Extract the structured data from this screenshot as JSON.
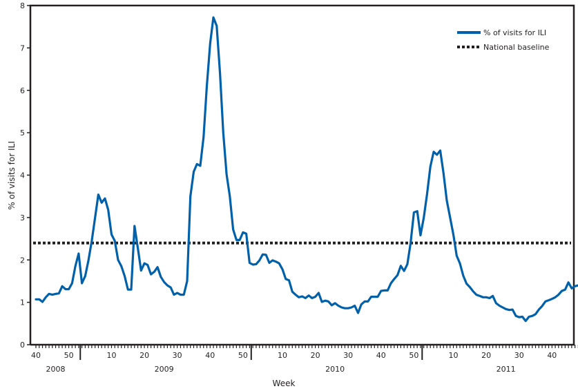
{
  "chart_data": {
    "type": "line",
    "title": "",
    "xlabel": "Week",
    "ylabel": "% of visits for ILI",
    "ylim": [
      0,
      8
    ],
    "y_ticks": [
      0,
      1,
      2,
      3,
      4,
      5,
      6,
      7,
      8
    ],
    "grid": false,
    "legend_position": "top-right",
    "legend": [
      {
        "label": "% of visits for ILI",
        "style": "solid",
        "color": "#0060a9"
      },
      {
        "label": "National baseline",
        "style": "dotted",
        "color": "#231f20"
      }
    ],
    "x_tick_labels": [
      {
        "week_index": 0,
        "label": "40"
      },
      {
        "week_index": 10,
        "label": "50"
      },
      {
        "week_index": 23,
        "label": "10"
      },
      {
        "week_index": 33,
        "label": "20"
      },
      {
        "week_index": 43,
        "label": "30"
      },
      {
        "week_index": 53,
        "label": "40"
      },
      {
        "week_index": 63,
        "label": "50"
      },
      {
        "week_index": 75,
        "label": "10"
      },
      {
        "week_index": 85,
        "label": "20"
      },
      {
        "week_index": 95,
        "label": "30"
      },
      {
        "week_index": 105,
        "label": "40"
      },
      {
        "week_index": 115,
        "label": "50"
      },
      {
        "week_index": 127,
        "label": "10"
      },
      {
        "week_index": 137,
        "label": "20"
      },
      {
        "week_index": 147,
        "label": "30"
      },
      {
        "week_index": 157,
        "label": "40"
      }
    ],
    "year_dividers": [
      13.5,
      65.5,
      117.5
    ],
    "year_labels": [
      {
        "week_index": 6,
        "label": "2008"
      },
      {
        "week_index": 39,
        "label": "2009"
      },
      {
        "week_index": 91,
        "label": "2010"
      },
      {
        "week_index": 143,
        "label": "2011"
      }
    ],
    "series": [
      {
        "name": "% of visits for ILI",
        "start": "2008 week 40",
        "values": [
          1.07,
          1.07,
          1.01,
          1.12,
          1.2,
          1.18,
          1.2,
          1.21,
          1.38,
          1.31,
          1.31,
          1.45,
          1.85,
          2.15,
          1.45,
          1.62,
          2.0,
          2.45,
          3.0,
          3.54,
          3.35,
          3.45,
          3.18,
          2.6,
          2.45,
          2.0,
          1.85,
          1.62,
          1.3,
          1.3,
          2.8,
          2.28,
          1.75,
          1.92,
          1.88,
          1.66,
          1.72,
          1.83,
          1.6,
          1.48,
          1.4,
          1.35,
          1.18,
          1.22,
          1.18,
          1.18,
          1.5,
          3.5,
          4.08,
          4.26,
          4.22,
          4.9,
          6.1,
          7.1,
          7.72,
          7.52,
          6.4,
          5.0,
          4.02,
          3.5,
          2.72,
          2.47,
          2.47,
          2.65,
          2.62,
          1.93,
          1.89,
          1.9,
          1.99,
          2.13,
          2.12,
          1.93,
          1.99,
          1.96,
          1.92,
          1.78,
          1.55,
          1.52,
          1.25,
          1.18,
          1.12,
          1.14,
          1.1,
          1.16,
          1.1,
          1.13,
          1.22,
          1.01,
          1.04,
          1.02,
          0.93,
          0.98,
          0.92,
          0.88,
          0.86,
          0.86,
          0.88,
          0.92,
          0.75,
          0.95,
          1.02,
          1.02,
          1.13,
          1.13,
          1.13,
          1.27,
          1.28,
          1.28,
          1.45,
          1.55,
          1.64,
          1.86,
          1.74,
          1.9,
          2.4,
          3.12,
          3.15,
          2.58,
          3.0,
          3.55,
          4.2,
          4.55,
          4.48,
          4.58,
          4.05,
          3.4,
          3.0,
          2.6,
          2.1,
          1.92,
          1.63,
          1.44,
          1.36,
          1.26,
          1.18,
          1.15,
          1.12,
          1.12,
          1.1,
          1.15,
          0.98,
          0.92,
          0.88,
          0.84,
          0.82,
          0.83,
          0.68,
          0.65,
          0.66,
          0.56,
          0.66,
          0.68,
          0.72,
          0.83,
          0.91,
          1.02,
          1.05,
          1.08,
          1.12,
          1.18,
          1.27,
          1.3,
          1.47,
          1.33,
          1.38,
          1.4
        ]
      },
      {
        "name": "National baseline",
        "value": 2.4
      }
    ]
  },
  "axes": {
    "y_label": "% of visits for ILI",
    "x_label": "Week"
  },
  "legend": {
    "ili_label": "% of visits for ILI",
    "baseline_label": "National baseline"
  },
  "colors": {
    "series": "#0060a9",
    "axis": "#231f20",
    "baseline": "#231f20"
  }
}
